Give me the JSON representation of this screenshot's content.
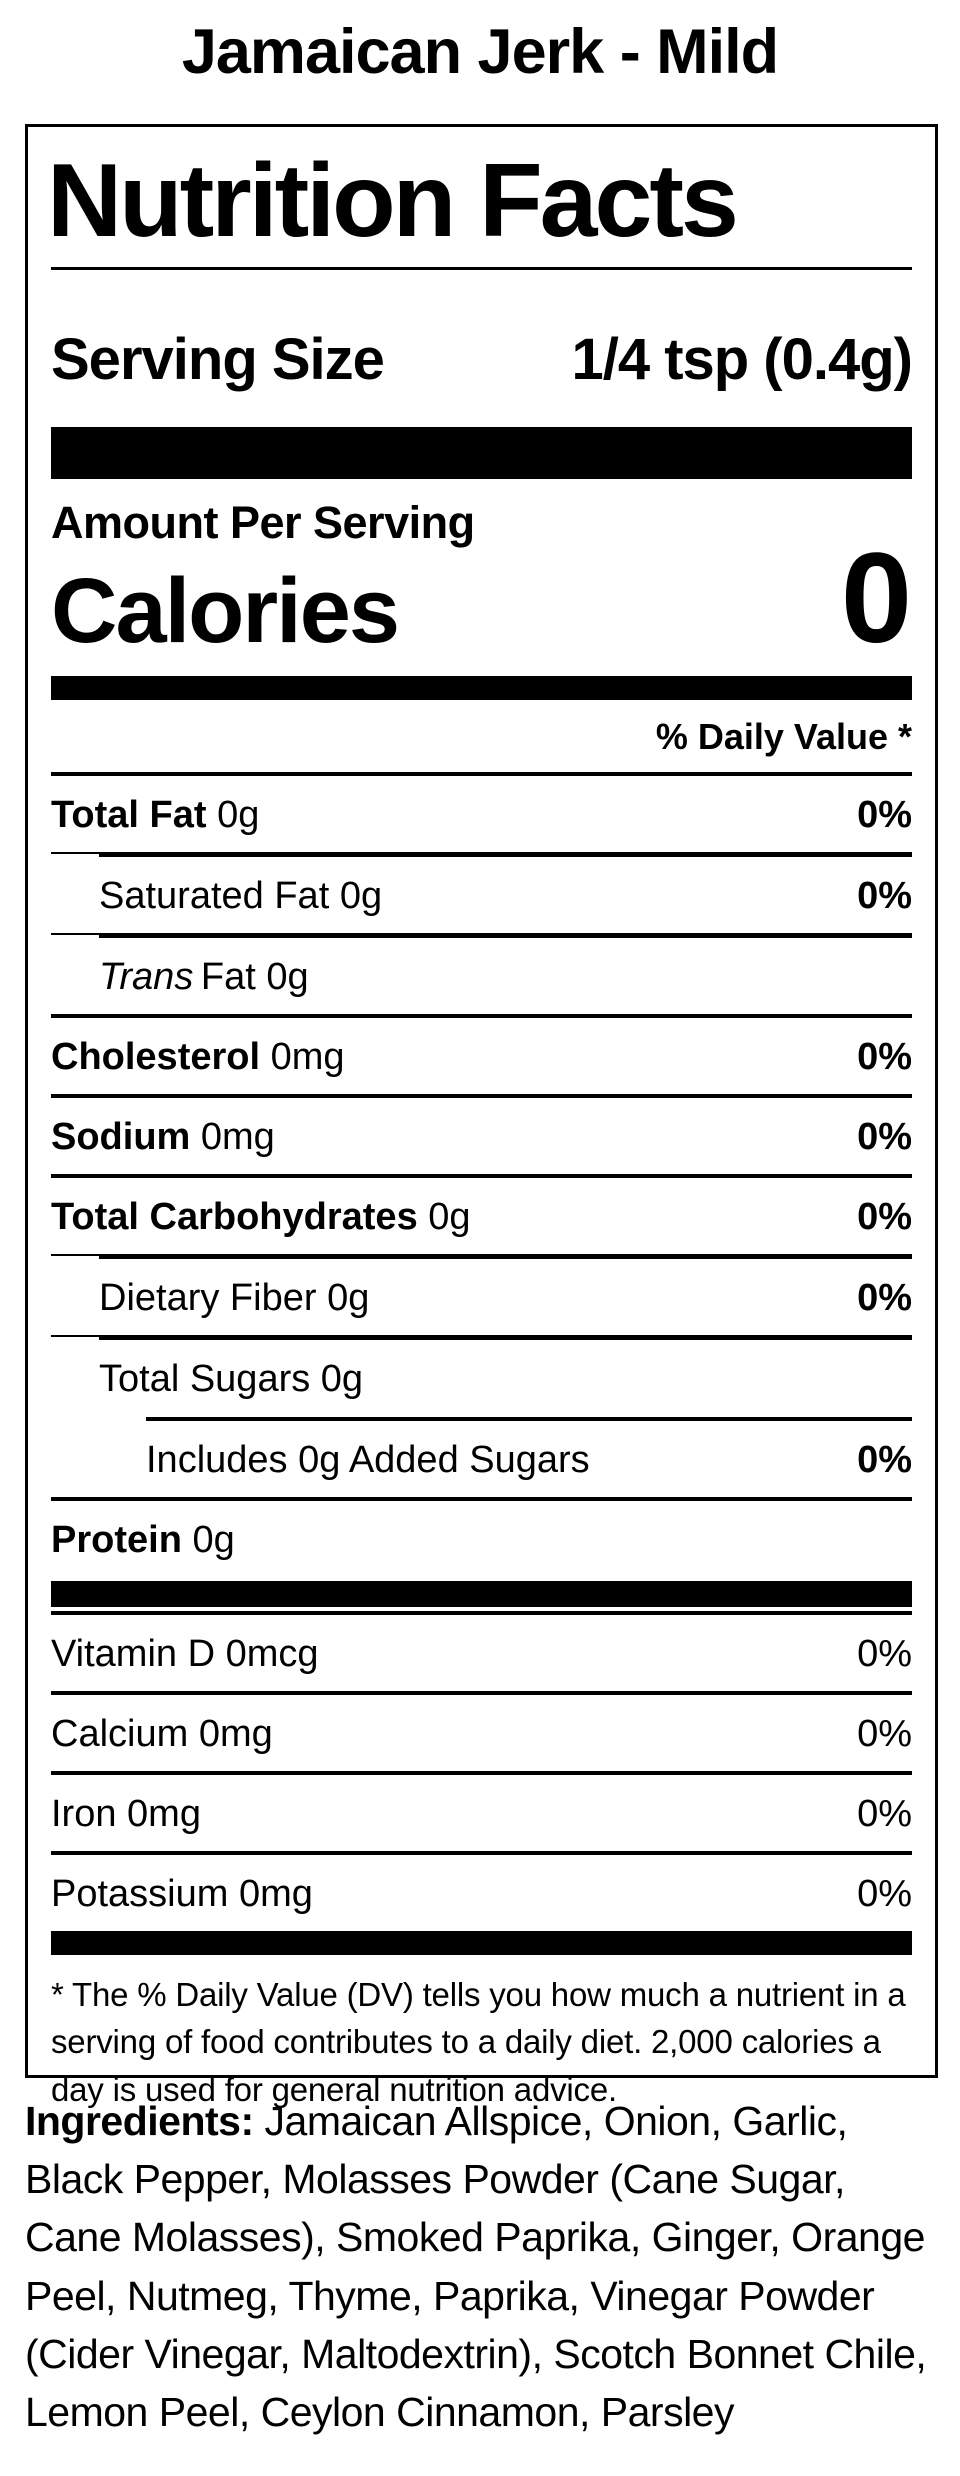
{
  "page": {
    "title": "Jamaican Jerk - Mild"
  },
  "label": {
    "heading": "Nutrition Facts",
    "serving": {
      "label": "Serving Size",
      "value": "1/4 tsp (0.4g)"
    },
    "amount_per_serving": "Amount Per Serving",
    "calories": {
      "label": "Calories",
      "value": "0"
    },
    "daily_value_header": "% Daily Value *",
    "rows": [
      {
        "name": "Total Fat",
        "amount": "0g",
        "dv": "0%"
      },
      {
        "name": "Saturated Fat",
        "amount": "0g",
        "dv": "0%"
      },
      {
        "name_italic": "Trans",
        "name": "Fat",
        "amount": "0g",
        "dv": ""
      },
      {
        "name": "Cholesterol",
        "amount": "0mg",
        "dv": "0%"
      },
      {
        "name": "Sodium",
        "amount": "0mg",
        "dv": "0%"
      },
      {
        "name": "Total Carbohydrates",
        "amount": "0g",
        "dv": "0%"
      },
      {
        "name": "Dietary Fiber",
        "amount": "0g",
        "dv": "0%"
      },
      {
        "name": "Total Sugars",
        "amount": "0g",
        "dv": ""
      },
      {
        "name": "Includes 0g Added Sugars",
        "amount": "",
        "dv": "0%"
      },
      {
        "name": "Protein",
        "amount": "0g",
        "dv": ""
      },
      {
        "name": "Vitamin D",
        "amount": "0mcg",
        "dv": "0%"
      },
      {
        "name": "Calcium",
        "amount": "0mg",
        "dv": "0%"
      },
      {
        "name": "Iron",
        "amount": "0mg",
        "dv": "0%"
      },
      {
        "name": "Potassium",
        "amount": "0mg",
        "dv": "0%"
      }
    ],
    "footnote": "* The % Daily Value (DV) tells you how much a nutrient in a serving of food contributes to a daily diet. 2,000 calories a day is used for general nutrition advice.",
    "colors": {
      "ink": "#000000",
      "paper": "#ffffff"
    }
  },
  "ingredients": {
    "label": "Ingredients:",
    "text": "Jamaican Allspice, Onion, Garlic, Black Pepper, Molasses Powder (Cane Sugar, Cane Molasses), Smoked Paprika, Ginger, Orange Peel, Nutmeg, Thyme, Paprika, Vinegar Powder (Cider Vinegar, Maltodextrin), Scotch Bonnet Chile, Lemon Peel, Ceylon Cinnamon, Parsley"
  }
}
